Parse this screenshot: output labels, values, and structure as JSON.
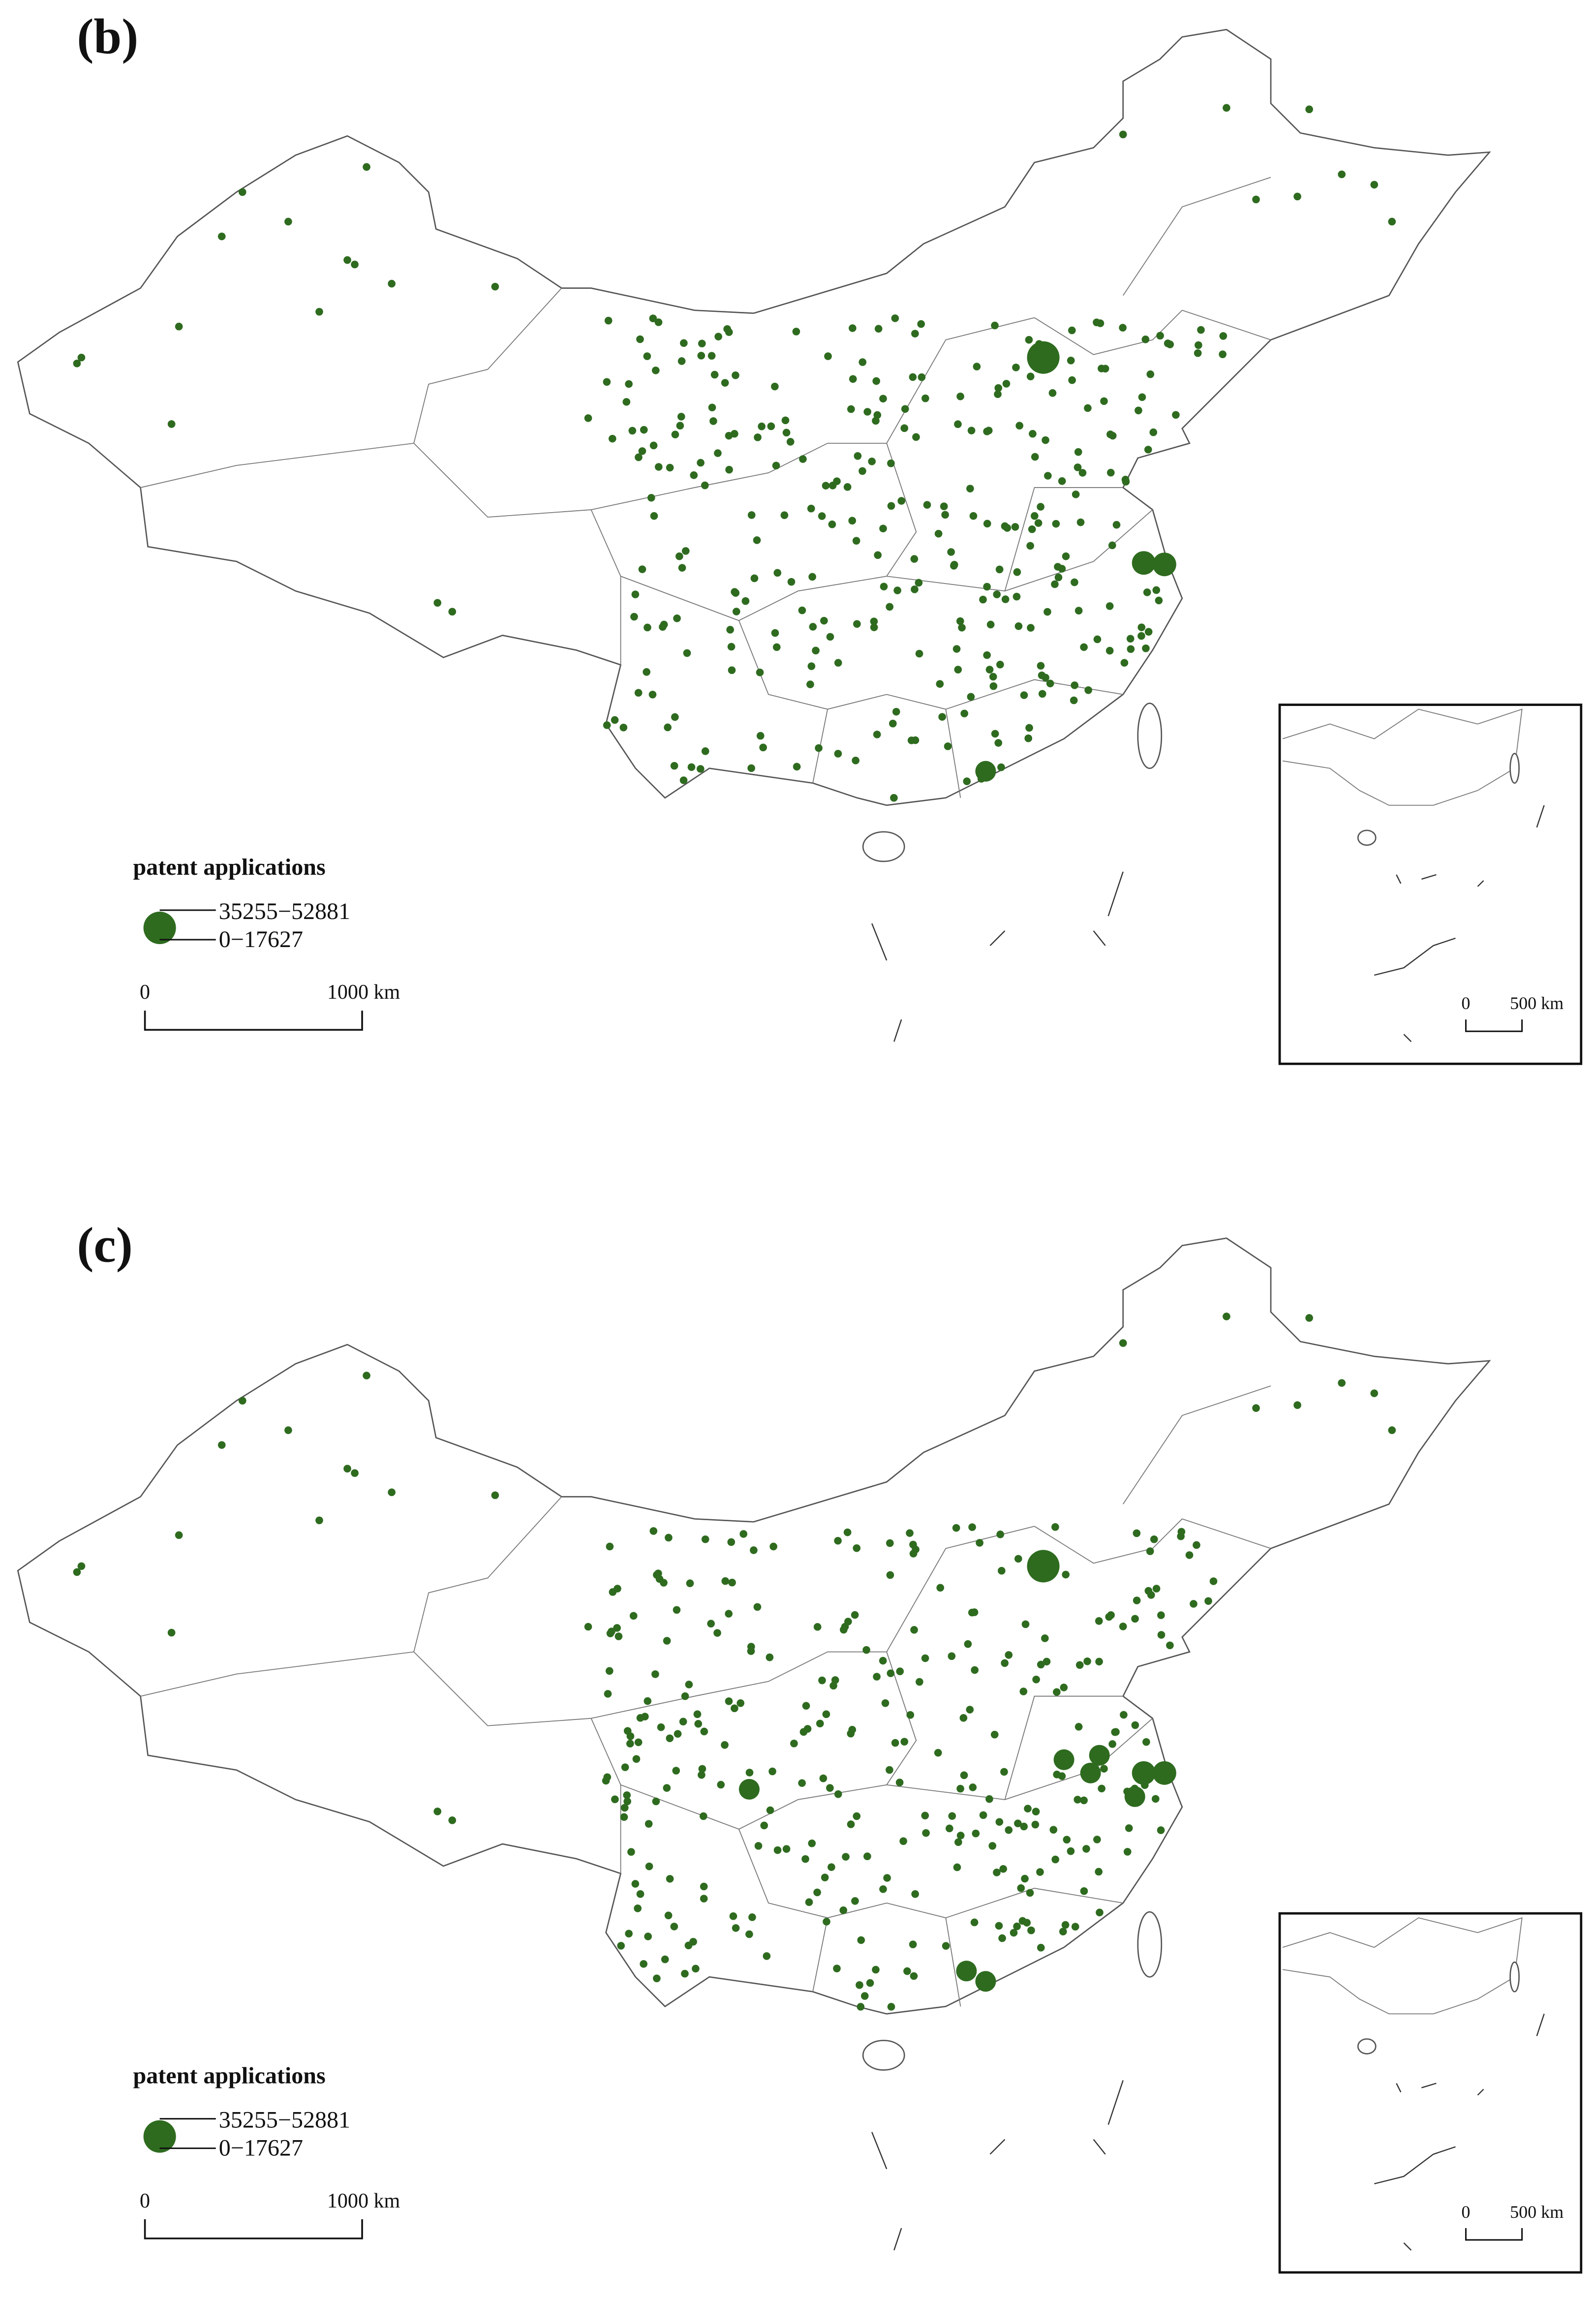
{
  "panels": [
    {
      "label": "(b)",
      "legend": {
        "title": "patent applications",
        "classes": [
          "35255−52881",
          "0−17627"
        ]
      },
      "scale_bar": {
        "start": "0",
        "end": "1000 km"
      },
      "inset_scale_bar": {
        "start": "0",
        "end": "500 km"
      }
    },
    {
      "label": "(c)",
      "legend": {
        "title": "patent applications",
        "classes": [
          "35255−52881",
          "0−17627"
        ]
      },
      "scale_bar": {
        "start": "0",
        "end": "1000 km"
      },
      "inset_scale_bar": {
        "start": "0",
        "end": "500 km"
      }
    }
  ]
}
